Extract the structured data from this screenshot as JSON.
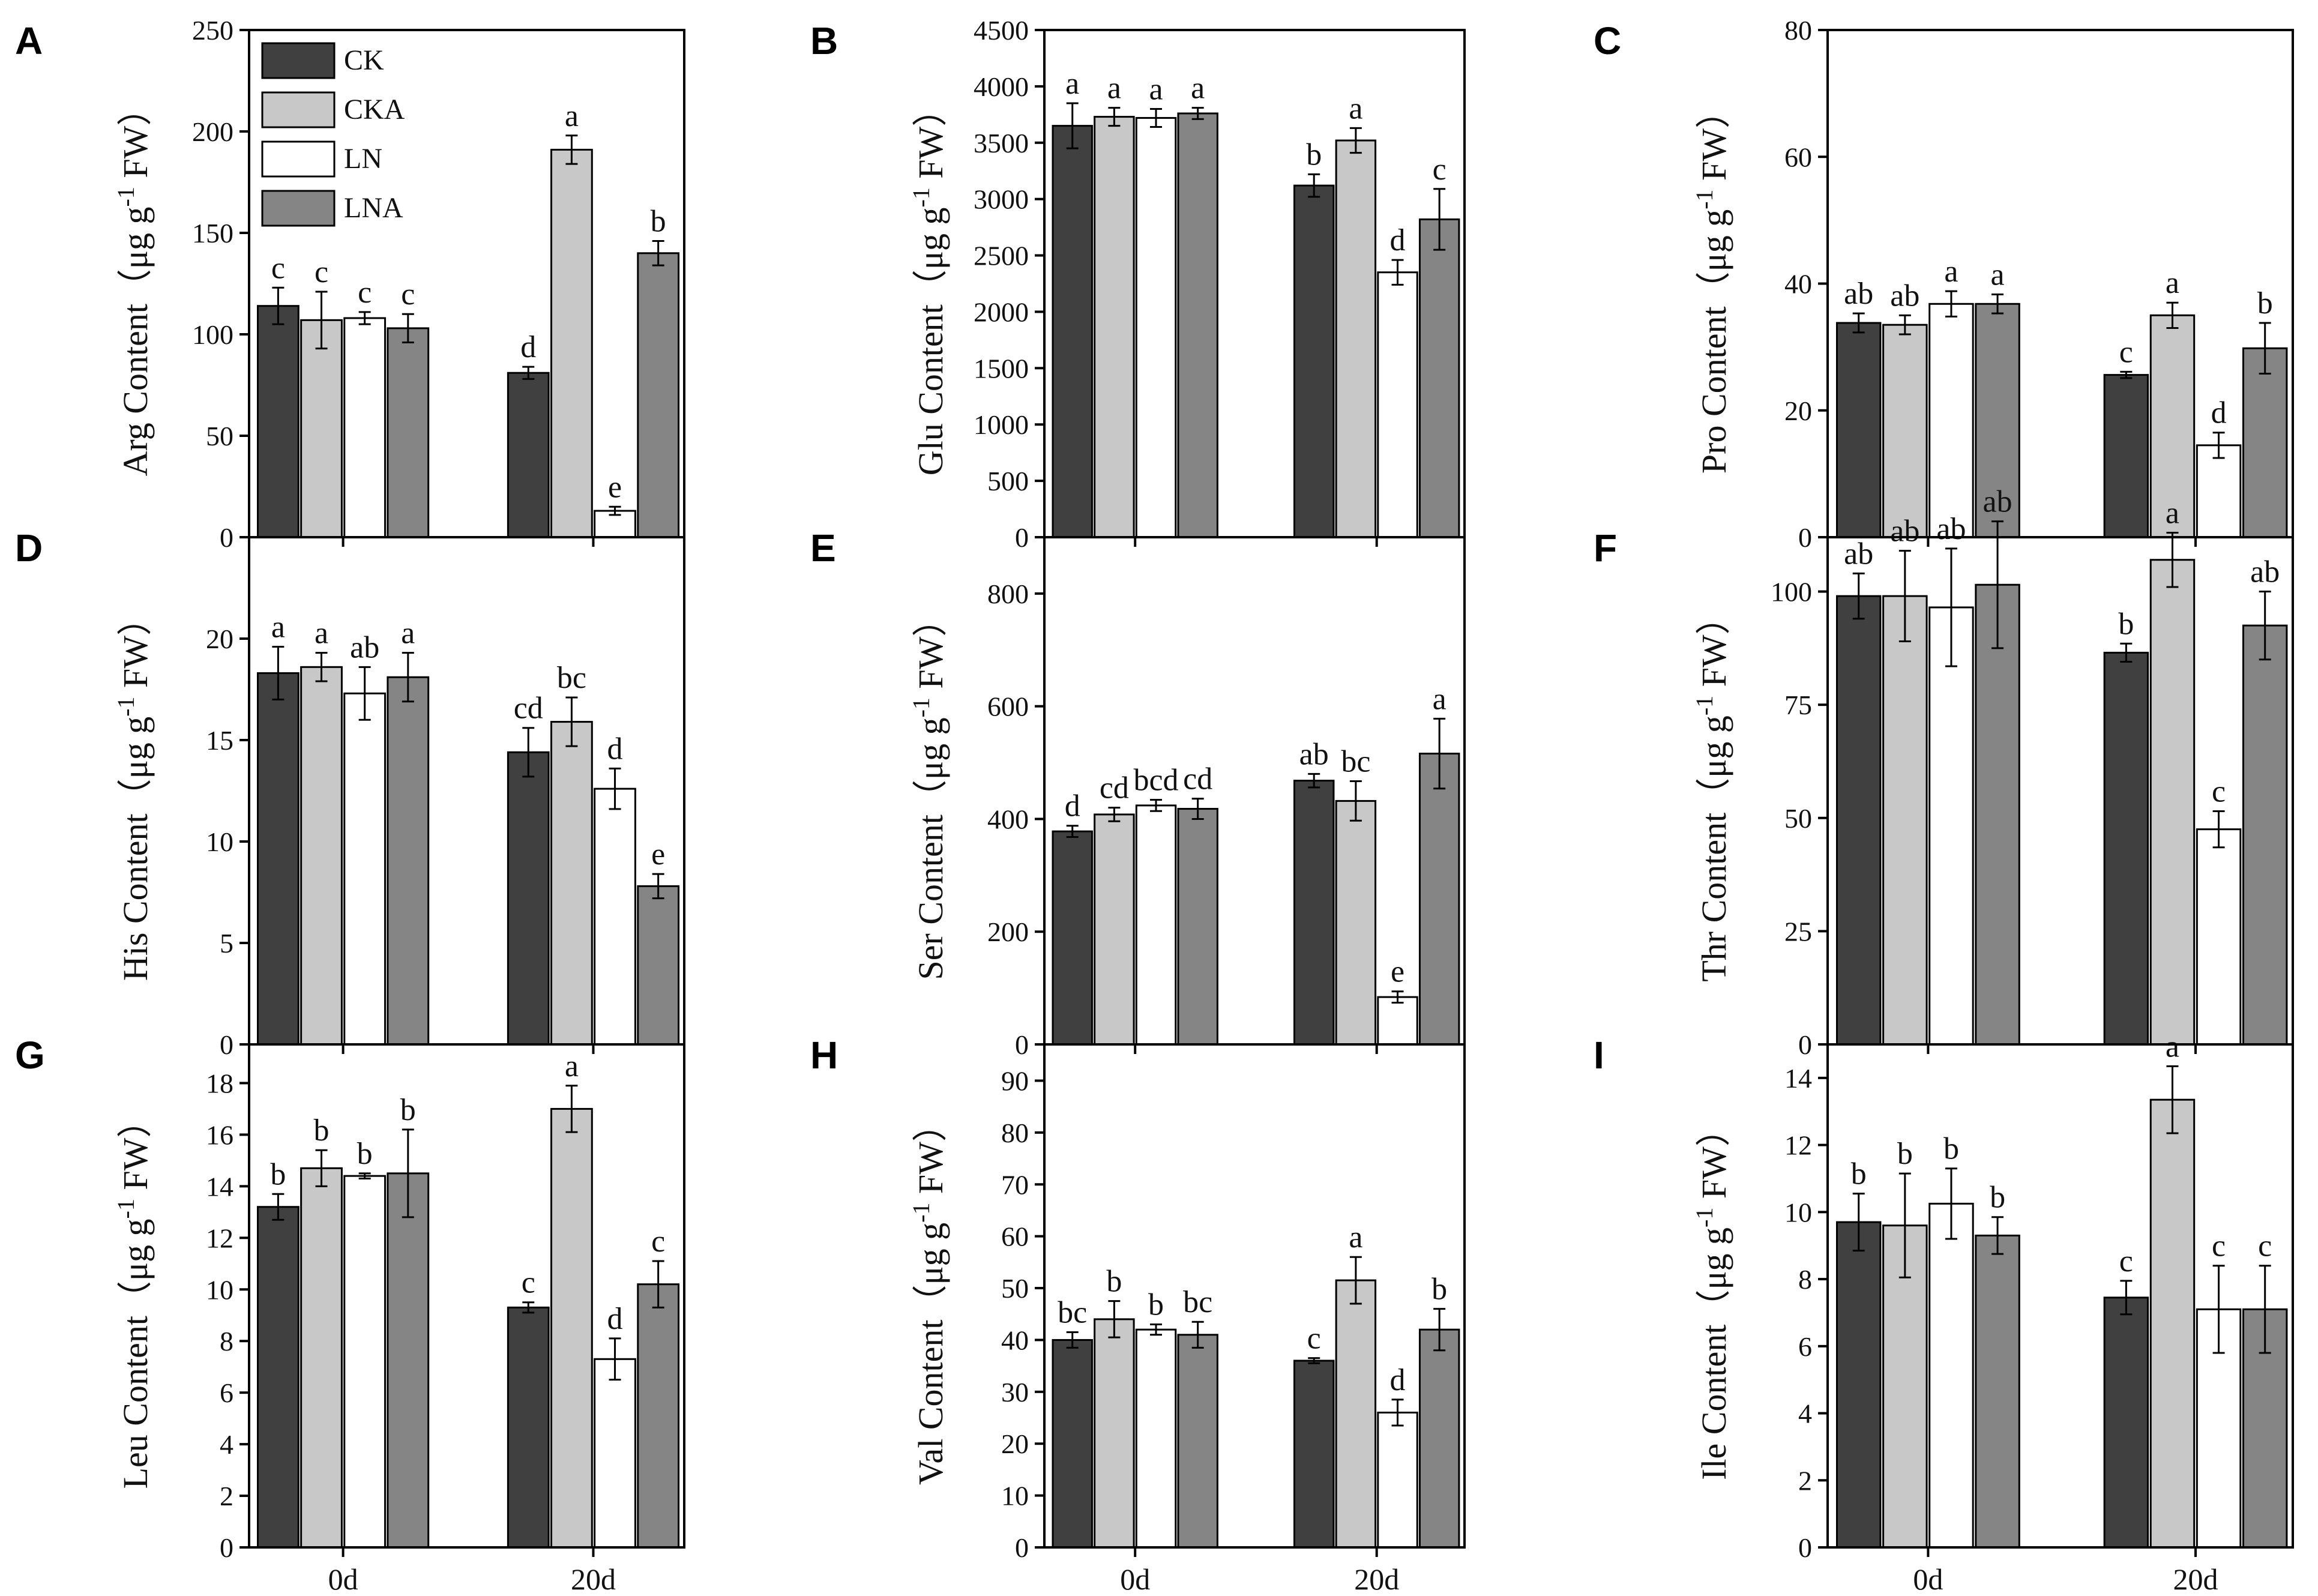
{
  "legend": [
    {
      "name": "CK",
      "color": "#404040"
    },
    {
      "name": "CKA",
      "color": "#c8c8c8"
    },
    {
      "name": "LN",
      "color": "#ffffff"
    },
    {
      "name": "LNA",
      "color": "#858585"
    }
  ],
  "chart_data": [
    {
      "type": "bar",
      "panel": "A",
      "ylabel": "Arg Content（μg g-1 FW）",
      "ylabel_parts": {
        "name": "Arg Content（μg g",
        "sup": "-1",
        "unit": " FW）"
      },
      "ylim": [
        0,
        250
      ],
      "yticks": [
        "0",
        "50",
        "100",
        "150",
        "200",
        "250"
      ],
      "ytick_values": [
        0,
        50,
        100,
        150,
        200,
        250
      ],
      "categories": [
        "0d",
        "20d"
      ],
      "series": [
        {
          "name": "CK",
          "values": [
            114,
            81
          ],
          "errors": [
            9,
            3
          ],
          "labels": [
            "c",
            "d"
          ]
        },
        {
          "name": "CKA",
          "values": [
            107,
            191
          ],
          "errors": [
            14,
            7
          ],
          "labels": [
            "c",
            "a"
          ]
        },
        {
          "name": "LN",
          "values": [
            108,
            13
          ],
          "errors": [
            3,
            2
          ],
          "labels": [
            "c",
            "e"
          ]
        },
        {
          "name": "LNA",
          "values": [
            103,
            140
          ],
          "errors": [
            7,
            6
          ],
          "labels": [
            "c",
            "b"
          ]
        }
      ]
    },
    {
      "type": "bar",
      "panel": "B",
      "ylabel": "Glu Content（μg g-1 FW）",
      "ylabel_parts": {
        "name": "Glu Content（μg g",
        "sup": "-1",
        "unit": " FW）"
      },
      "ylim": [
        0,
        4500
      ],
      "yticks": [
        "0",
        "500",
        "1000",
        "1500",
        "2000",
        "2500",
        "3000",
        "3500",
        "4000",
        "4500"
      ],
      "ytick_values": [
        0,
        500,
        1000,
        1500,
        2000,
        2500,
        3000,
        3500,
        4000,
        4500
      ],
      "categories": [
        "0d",
        "20d"
      ],
      "series": [
        {
          "name": "CK",
          "values": [
            3650,
            3120
          ],
          "errors": [
            200,
            100
          ],
          "labels": [
            "a",
            "b"
          ]
        },
        {
          "name": "CKA",
          "values": [
            3730,
            3520
          ],
          "errors": [
            80,
            110
          ],
          "labels": [
            "a",
            "a"
          ]
        },
        {
          "name": "LN",
          "values": [
            3720,
            2350
          ],
          "errors": [
            80,
            110
          ],
          "labels": [
            "a",
            "d"
          ]
        },
        {
          "name": "LNA",
          "values": [
            3760,
            2820
          ],
          "errors": [
            50,
            270
          ],
          "labels": [
            "a",
            "c"
          ]
        }
      ]
    },
    {
      "type": "bar",
      "panel": "C",
      "ylabel": "Pro Content（μg g-1 FW）",
      "ylabel_parts": {
        "name": "Pro Content（μg g",
        "sup": "-1",
        "unit": " FW）"
      },
      "ylim": [
        0,
        80
      ],
      "yticks": [
        "0",
        "20",
        "40",
        "60",
        "80"
      ],
      "ytick_values": [
        0,
        20,
        40,
        60,
        80
      ],
      "categories": [
        "0d",
        "20d"
      ],
      "series": [
        {
          "name": "CK",
          "values": [
            33.8,
            25.6
          ],
          "errors": [
            1.5,
            0.5
          ],
          "labels": [
            "ab",
            "c"
          ]
        },
        {
          "name": "CKA",
          "values": [
            33.5,
            35.0
          ],
          "errors": [
            1.5,
            2.0
          ],
          "labels": [
            "ab",
            "a"
          ]
        },
        {
          "name": "LN",
          "values": [
            36.8,
            14.5
          ],
          "errors": [
            2.0,
            2.0
          ],
          "labels": [
            "a",
            "d"
          ]
        },
        {
          "name": "LNA",
          "values": [
            36.8,
            29.8
          ],
          "errors": [
            1.5,
            4.0
          ],
          "labels": [
            "a",
            "b"
          ]
        }
      ]
    },
    {
      "type": "bar",
      "panel": "D",
      "ylabel": "His Content（μg g-1 FW）",
      "ylabel_parts": {
        "name": "His Content（μg g",
        "sup": "-1",
        "unit": " FW）"
      },
      "ylim": [
        0,
        25
      ],
      "yticks": [
        "0",
        "5",
        "10",
        "15",
        "20"
      ],
      "ytick_values": [
        0,
        5,
        10,
        15,
        20
      ],
      "categories": [
        "0d",
        "20d"
      ],
      "series": [
        {
          "name": "CK",
          "values": [
            18.3,
            14.4
          ],
          "errors": [
            1.3,
            1.2
          ],
          "labels": [
            "a",
            "cd"
          ]
        },
        {
          "name": "CKA",
          "values": [
            18.6,
            15.9
          ],
          "errors": [
            0.7,
            1.2
          ],
          "labels": [
            "a",
            "bc"
          ]
        },
        {
          "name": "LN",
          "values": [
            17.3,
            12.6
          ],
          "errors": [
            1.3,
            1.0
          ],
          "labels": [
            "ab",
            "d"
          ]
        },
        {
          "name": "LNA",
          "values": [
            18.1,
            7.8
          ],
          "errors": [
            1.2,
            0.6
          ],
          "labels": [
            "a",
            "e"
          ]
        }
      ]
    },
    {
      "type": "bar",
      "panel": "E",
      "ylabel": "Ser Content（μg g-1 FW）",
      "ylabel_parts": {
        "name": "Ser Content（μg g",
        "sup": "-1",
        "unit": " FW）"
      },
      "ylim": [
        0,
        900
      ],
      "yticks": [
        "0",
        "200",
        "400",
        "600",
        "800"
      ],
      "ytick_values": [
        0,
        200,
        400,
        600,
        800
      ],
      "categories": [
        "0d",
        "20d"
      ],
      "series": [
        {
          "name": "CK",
          "values": [
            378,
            468
          ],
          "errors": [
            10,
            12
          ],
          "labels": [
            "d",
            "ab"
          ]
        },
        {
          "name": "CKA",
          "values": [
            408,
            432
          ],
          "errors": [
            12,
            35
          ],
          "labels": [
            "cd",
            "bc"
          ]
        },
        {
          "name": "LN",
          "values": [
            424,
            84
          ],
          "errors": [
            10,
            10
          ],
          "labels": [
            "bcd",
            "e"
          ]
        },
        {
          "name": "LNA",
          "values": [
            418,
            516
          ],
          "errors": [
            18,
            62
          ],
          "labels": [
            "cd",
            "a"
          ]
        }
      ]
    },
    {
      "type": "bar",
      "panel": "F",
      "ylabel": "Thr Content（μg g-1 FW）",
      "ylabel_parts": {
        "name": "Thr Content（μg g",
        "sup": "-1",
        "unit": " FW）"
      },
      "ylim": [
        0,
        112
      ],
      "yticks": [
        "0",
        "25",
        "50",
        "75",
        "100"
      ],
      "ytick_values": [
        0,
        25,
        50,
        75,
        100
      ],
      "categories": [
        "0d",
        "20d"
      ],
      "series": [
        {
          "name": "CK",
          "values": [
            99,
            86.5
          ],
          "errors": [
            5,
            2
          ],
          "labels": [
            "ab",
            "b"
          ]
        },
        {
          "name": "CKA",
          "values": [
            99,
            107
          ],
          "errors": [
            10,
            6
          ],
          "labels": [
            "ab",
            "a"
          ]
        },
        {
          "name": "LN",
          "values": [
            96.5,
            47.5
          ],
          "errors": [
            13,
            4
          ],
          "labels": [
            "ab",
            "c"
          ]
        },
        {
          "name": "LNA",
          "values": [
            101.5,
            92.5
          ],
          "errors": [
            14,
            7.5
          ],
          "labels": [
            "ab",
            "ab"
          ]
        }
      ]
    },
    {
      "type": "bar",
      "panel": "G",
      "ylabel": "Leu Content（μg g-1 FW）",
      "ylabel_parts": {
        "name": "Leu Content（μg g",
        "sup": "-1",
        "unit": " FW）"
      },
      "ylim": [
        0,
        19.5
      ],
      "yticks": [
        "0",
        "2",
        "4",
        "6",
        "8",
        "10",
        "12",
        "14",
        "16",
        "18"
      ],
      "ytick_values": [
        0,
        2,
        4,
        6,
        8,
        10,
        12,
        14,
        16,
        18
      ],
      "xlabel_categories": true,
      "categories": [
        "0d",
        "20d"
      ],
      "series": [
        {
          "name": "CK",
          "values": [
            13.2,
            9.3
          ],
          "errors": [
            0.5,
            0.2
          ],
          "labels": [
            "b",
            "c"
          ]
        },
        {
          "name": "CKA",
          "values": [
            14.7,
            17.0
          ],
          "errors": [
            0.7,
            0.9
          ],
          "labels": [
            "b",
            "a"
          ]
        },
        {
          "name": "LN",
          "values": [
            14.4,
            7.3
          ],
          "errors": [
            0.1,
            0.8
          ],
          "labels": [
            "b",
            "d"
          ]
        },
        {
          "name": "LNA",
          "values": [
            14.5,
            10.2
          ],
          "errors": [
            1.7,
            0.9
          ],
          "labels": [
            "b",
            "c"
          ]
        }
      ]
    },
    {
      "type": "bar",
      "panel": "H",
      "ylabel": "Val Content（μg g-1 FW）",
      "ylabel_parts": {
        "name": "Val Content（μg g",
        "sup": "-1",
        "unit": " FW）"
      },
      "ylim": [
        0,
        97
      ],
      "yticks": [
        "0",
        "10",
        "20",
        "30",
        "40",
        "50",
        "60",
        "70",
        "80",
        "90"
      ],
      "ytick_values": [
        0,
        10,
        20,
        30,
        40,
        50,
        60,
        70,
        80,
        90
      ],
      "xlabel_categories": true,
      "categories": [
        "0d",
        "20d"
      ],
      "series": [
        {
          "name": "CK",
          "values": [
            40,
            36
          ],
          "errors": [
            1.5,
            0.5
          ],
          "labels": [
            "bc",
            "c"
          ]
        },
        {
          "name": "CKA",
          "values": [
            44,
            51.5
          ],
          "errors": [
            3.5,
            4.5
          ],
          "labels": [
            "b",
            "a"
          ]
        },
        {
          "name": "LN",
          "values": [
            42,
            26
          ],
          "errors": [
            1,
            2.5
          ],
          "labels": [
            "b",
            "d"
          ]
        },
        {
          "name": "LNA",
          "values": [
            41,
            42
          ],
          "errors": [
            2.5,
            4
          ],
          "labels": [
            "bc",
            "b"
          ]
        }
      ]
    },
    {
      "type": "bar",
      "panel": "I",
      "ylabel": "Ile Content（μg g-1 FW）",
      "ylabel_parts": {
        "name": "Ile Content（μg g",
        "sup": "-1",
        "unit": " FW）"
      },
      "ylim": [
        0,
        15
      ],
      "yticks": [
        "0",
        "2",
        "4",
        "6",
        "8",
        "10",
        "12",
        "14"
      ],
      "ytick_values": [
        0,
        2,
        4,
        6,
        8,
        10,
        12,
        14
      ],
      "xlabel_categories": true,
      "categories": [
        "0d",
        "20d"
      ],
      "series": [
        {
          "name": "CK",
          "values": [
            9.7,
            7.45
          ],
          "errors": [
            0.85,
            0.5
          ],
          "labels": [
            "b",
            "c"
          ]
        },
        {
          "name": "CKA",
          "values": [
            9.6,
            13.35
          ],
          "errors": [
            1.55,
            1.0
          ],
          "labels": [
            "b",
            "a"
          ]
        },
        {
          "name": "LN",
          "values": [
            10.25,
            7.1
          ],
          "errors": [
            1.05,
            1.3
          ],
          "labels": [
            "b",
            "c"
          ]
        },
        {
          "name": "LNA",
          "values": [
            9.3,
            7.1
          ],
          "errors": [
            0.55,
            1.3
          ],
          "labels": [
            "b",
            "c"
          ]
        }
      ]
    }
  ]
}
